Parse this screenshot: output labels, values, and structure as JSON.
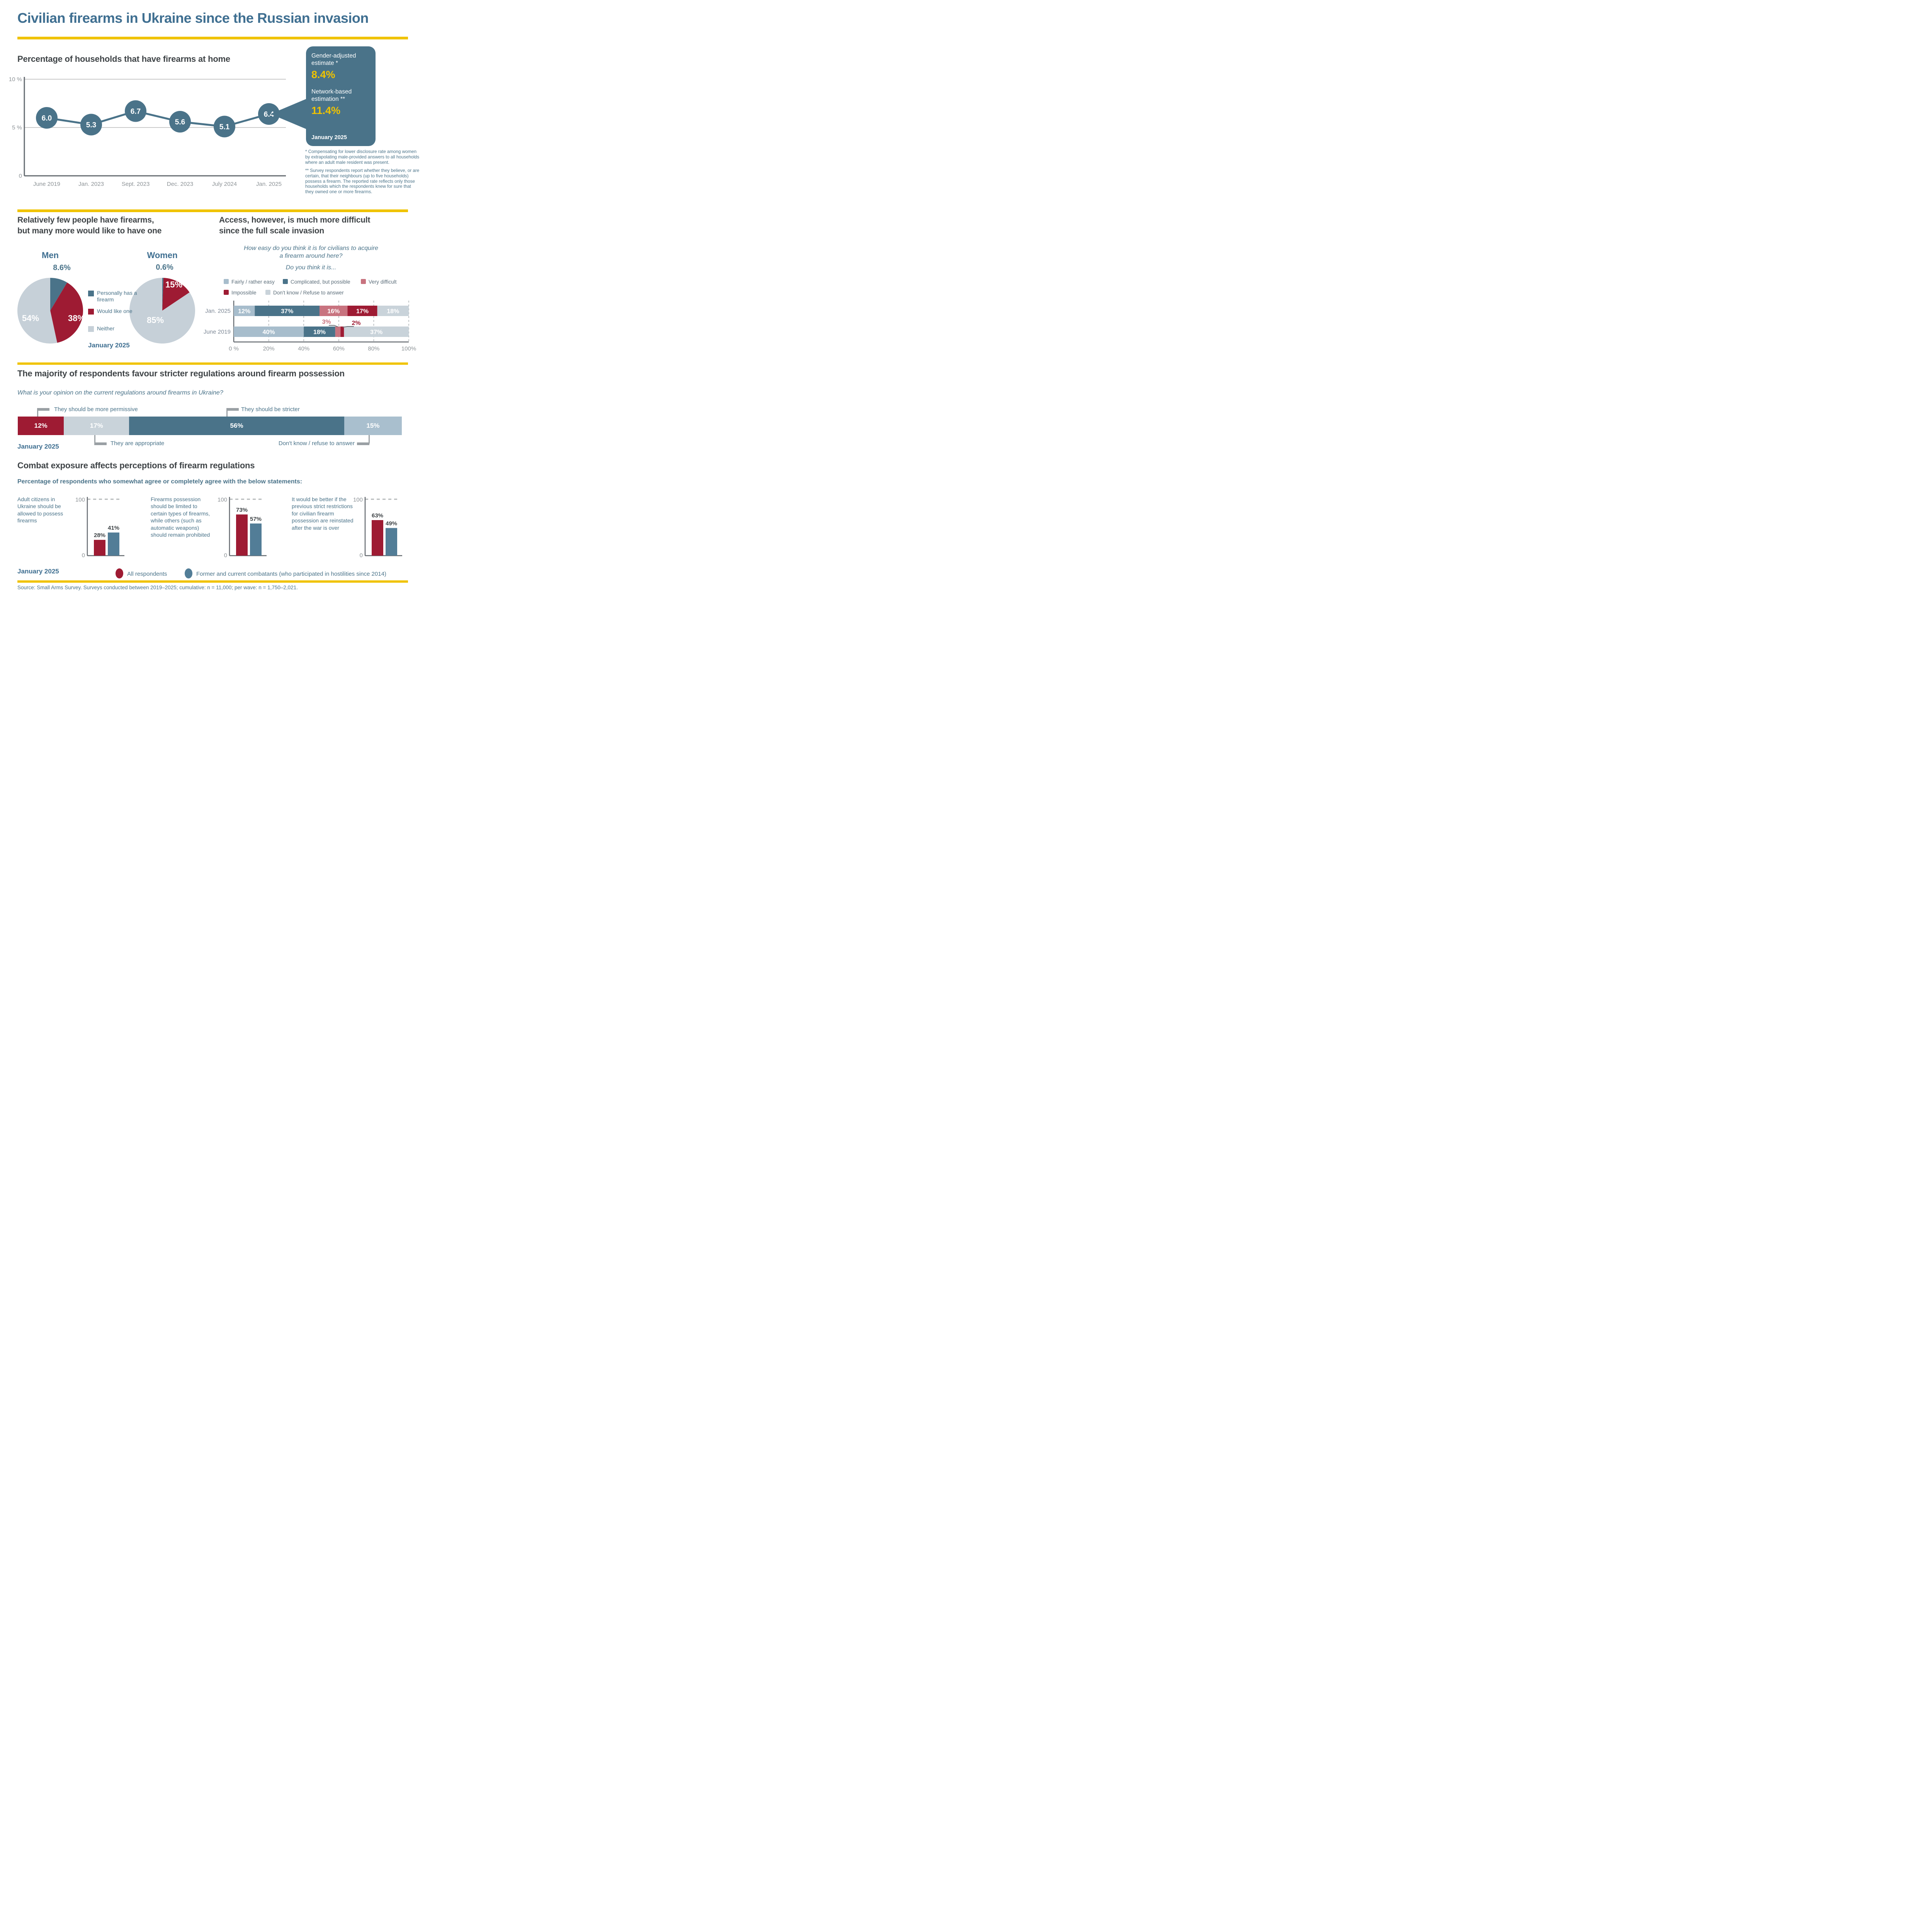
{
  "page": {
    "title": "Civilian firearms in Ukraine since the Russian invasion",
    "source": "Source: Small Arms Survey. Surveys conducted between 2019–2025; cumulative: n = 11,000; per wave: n = 1,750–2,021."
  },
  "colors": {
    "title_blue": "#3f6f91",
    "steel_blue": "#4a7389",
    "dark_red": "#9e1b33",
    "rose": "#c8737f",
    "pale_blue_gray": "#a7bdcc",
    "light_gray": "#c9d3da",
    "bar_blue": "#527d97",
    "yellow": "#f0c300",
    "header_gray": "#3f4447",
    "axis_gray": "#62686e",
    "tick_gray": "#8d9397",
    "connector_gray": "#9aa0a4"
  },
  "household": {
    "callout_label1": "Gender-adjusted estimate *",
    "callout_value1": "8.4%",
    "callout_label2": "Network-based estimation **",
    "callout_value2": "11.4%",
    "callout_date": "January 2025",
    "footnote1": "* Compensating for lower disclosure rate among women by extrapolating male-provided answers to all households where an adult male resident was present.",
    "footnote2": "** Survey respondents report whether they believe, or are certain, that their neighbours (up to five households) possess a firearm. The reported rate reflects only those households which the respondents knew for sure that they owned one or more firearms."
  },
  "sections": {
    "ownership": {
      "header_line1": "Relatively few people have firearms,",
      "header_line2": "but many more would like to have one",
      "date": "January 2025"
    },
    "access": {
      "header_line1": "Access, however, is much more difficult",
      "header_line2": "since the full scale invasion",
      "question_line1": "How easy do you think it is for civilians to acquire",
      "question_line2": "a firearm around here?",
      "question_line3": "Do you think it is..."
    },
    "regulation": {
      "header": "The majority of respondents favour stricter regulations around firearm possession",
      "question": "What is your opinion on the current regulations around firearms in Ukraine?",
      "date": "January 2025"
    },
    "combat": {
      "header": "Combat exposure affects perceptions of firearm regulations",
      "subheader": "Percentage of respondents who somewhat agree or completely agree with the below statements:",
      "date": "January 2025"
    }
  },
  "chart_data": [
    {
      "id": "household_firearms",
      "type": "line",
      "title": "Percentage of households that have firearms at home",
      "x": [
        "June 2019",
        "Jan. 2023",
        "Sept. 2023",
        "Dec. 2023",
        "July 2024",
        "Jan. 2025"
      ],
      "values": [
        6.0,
        5.3,
        6.7,
        5.6,
        5.1,
        6.4
      ],
      "point_labels": [
        "6.0",
        "5.3",
        "6.7",
        "5.6",
        "5.1",
        "6.4"
      ],
      "ylim": [
        0,
        10
      ],
      "y_ticks": [
        "10 %",
        "5 %",
        "0"
      ],
      "color": "#4a7389"
    },
    {
      "id": "men_pie",
      "type": "pie",
      "title": "Men",
      "labels": [
        "Personally has a firearm",
        "Would like one",
        "Neither"
      ],
      "values": [
        8.6,
        38,
        53.4
      ],
      "display": [
        "8.6%",
        "38%",
        "54%"
      ],
      "colors": [
        "#4a7389",
        "#9e1b33",
        "#c6d0d8"
      ]
    },
    {
      "id": "women_pie",
      "type": "pie",
      "title": "Women",
      "labels": [
        "Personally has a firearm",
        "Would like one",
        "Neither"
      ],
      "values": [
        0.6,
        15,
        84.4
      ],
      "display": [
        "0.6%",
        "15%",
        "85%"
      ],
      "colors": [
        "#4a7389",
        "#9e1b33",
        "#c6d0d8"
      ]
    },
    {
      "id": "access_difficulty",
      "type": "bar",
      "stacked": true,
      "orientation": "horizontal",
      "categories": [
        "Jan. 2025",
        "June 2019"
      ],
      "series": [
        {
          "name": "Fairly / rather easy",
          "values": [
            12,
            40
          ],
          "color": "#a7bdcc"
        },
        {
          "name": "Complicated, but possible",
          "values": [
            37,
            18
          ],
          "color": "#4a7389"
        },
        {
          "name": "Very difficult",
          "values": [
            16,
            3
          ],
          "color": "#c8737f"
        },
        {
          "name": "Impossible",
          "values": [
            17,
            2
          ],
          "color": "#9e1b33"
        },
        {
          "name": "Don't know / Refuse to answer",
          "values": [
            18,
            37
          ],
          "color": "#c9d3da"
        }
      ],
      "x_ticks": [
        "0 %",
        "20%",
        "40%",
        "60%",
        "80%",
        "100%"
      ],
      "xlim": [
        0,
        100
      ]
    },
    {
      "id": "regulation_opinion",
      "type": "bar",
      "stacked": true,
      "orientation": "horizontal",
      "categories": [
        "January 2025"
      ],
      "series": [
        {
          "name": "They should be more permissive",
          "values": [
            12
          ],
          "color": "#9e1b33"
        },
        {
          "name": "They are appropriate",
          "values": [
            17
          ],
          "color": "#c9d3da"
        },
        {
          "name": "They should be stricter",
          "values": [
            56
          ],
          "color": "#4a7389"
        },
        {
          "name": "Don't know / refuse to answer",
          "values": [
            15
          ],
          "color": "#a9bfce"
        }
      ],
      "xlim": [
        0,
        100
      ]
    },
    {
      "id": "combat_statements",
      "type": "bar",
      "categories": [
        "Adult citizens in Ukraine should be allowed to possess firearms",
        "Firearms possession should be limited to certain types of firearms, while others (such as automatic weapons) should remain prohibited",
        "It would be better if the previous strict restrictions for civilian firearm possession are reinstated after the war is over"
      ],
      "series": [
        {
          "name": "All respondents",
          "values": [
            28,
            73,
            63
          ],
          "color": "#9e1b33"
        },
        {
          "name": "Former and current combatants (who participated in hostilities since 2014)",
          "values": [
            41,
            57,
            49
          ],
          "color": "#527d97"
        }
      ],
      "ylim": [
        0,
        100
      ],
      "y_ticks": [
        "100",
        "0"
      ]
    }
  ]
}
